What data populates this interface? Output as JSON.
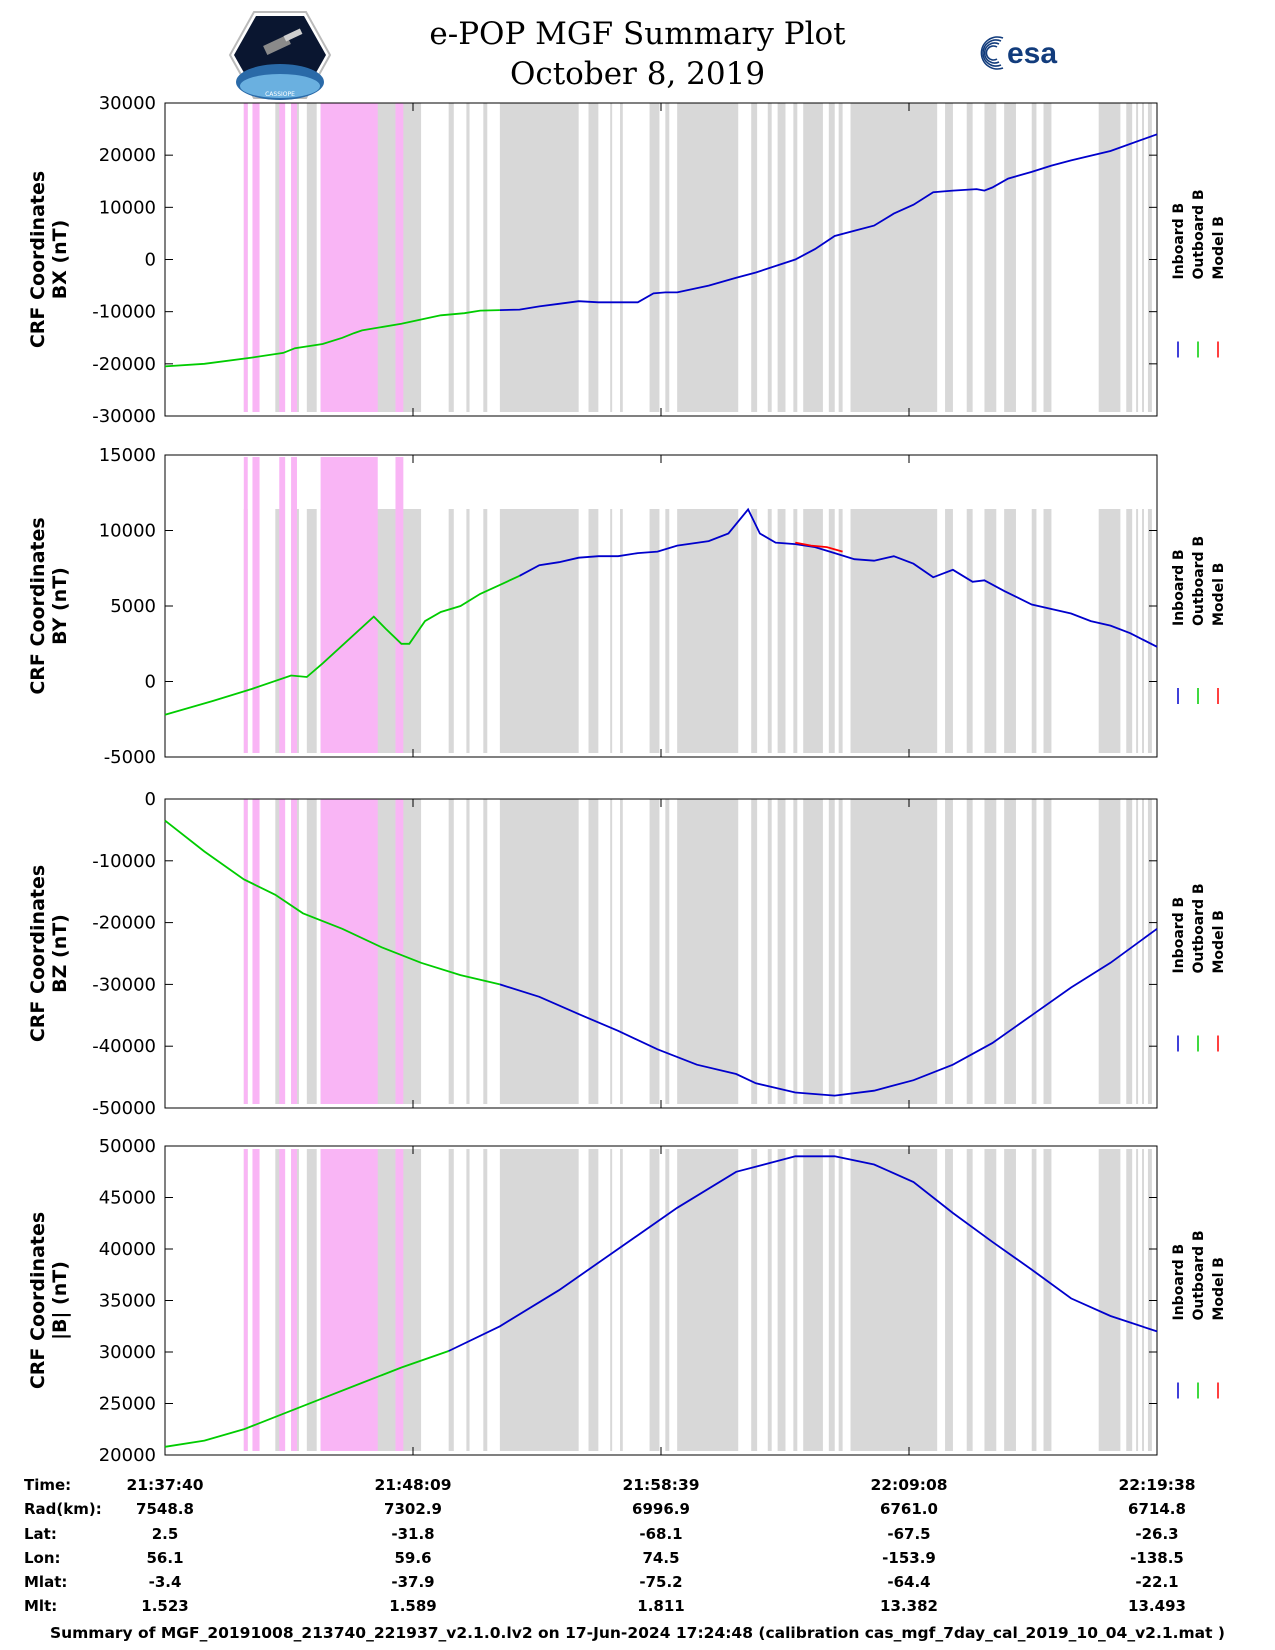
{
  "header": {
    "title_line1": "e-POP MGF Summary Plot",
    "title_line2": "October 8, 2019",
    "logo_left_text": "CASSIOPE",
    "logo_right_text": "esa"
  },
  "colors": {
    "inboard": "#0000cc",
    "outboard": "#00cc00",
    "model": "#ff0000",
    "shade_gray": "#d8d8d8",
    "shade_pink": "#f9b5f5"
  },
  "legend": {
    "inboard": "Inboard B",
    "outboard": "Outboard B",
    "model": "Model B"
  },
  "chart_data": [
    {
      "type": "line",
      "title": "",
      "ylabel": "CRF Coordinates\nBX (nT)",
      "ylim": [
        -30000,
        30000
      ],
      "yticks": [
        -30000,
        -20000,
        -10000,
        0,
        10000,
        20000,
        30000
      ],
      "ytick_labels": [
        "-30000",
        "-20000",
        "-10000",
        "0",
        "10000",
        "20000",
        "30000"
      ],
      "xlim": [
        0,
        2518
      ],
      "series": [
        {
          "name": "Outboard B",
          "color_key": "outboard",
          "x": [
            0,
            100,
            220,
            300,
            330,
            400,
            450,
            480,
            500,
            600,
            700,
            760,
            800,
            850
          ],
          "y": [
            -20500,
            -20000,
            -18800,
            -17900,
            -17000,
            -16200,
            -15000,
            -14100,
            -13600,
            -12300,
            -10700,
            -10300,
            -9800,
            -9700
          ]
        },
        {
          "name": "Inboard B",
          "color_key": "inboard",
          "x": [
            850,
            900,
            950,
            1000,
            1050,
            1100,
            1150,
            1200,
            1240,
            1270,
            1300,
            1380,
            1450,
            1500,
            1600,
            1650,
            1700,
            1750,
            1800,
            1850,
            1900,
            1950,
            2000,
            2060,
            2080,
            2100,
            2140,
            2200,
            2250,
            2300,
            2400,
            2518
          ],
          "y": [
            -9700,
            -9600,
            -9000,
            -8500,
            -8000,
            -8200,
            -8200,
            -8200,
            -6500,
            -6300,
            -6300,
            -5000,
            -3500,
            -2500,
            0,
            2000,
            4500,
            5500,
            6500,
            8800,
            10500,
            12900,
            13200,
            13500,
            13200,
            13800,
            15500,
            16800,
            18000,
            19000,
            20800,
            24000
          ]
        }
      ]
    },
    {
      "type": "line",
      "ylabel": "CRF Coordinates\nBY (nT)",
      "ylim": [
        -5000,
        15000
      ],
      "yticks": [
        -5000,
        0,
        5000,
        10000,
        15000
      ],
      "ytick_labels": [
        "-5000",
        "0",
        "5000",
        "10000",
        "15000"
      ],
      "xlim": [
        0,
        2518
      ],
      "series": [
        {
          "name": "Outboard B",
          "color_key": "outboard",
          "x": [
            0,
            120,
            220,
            320,
            360,
            400,
            530,
            560,
            600,
            620,
            660,
            700,
            750,
            800,
            850,
            900
          ],
          "y": [
            -2200,
            -1300,
            -500,
            400,
            300,
            1200,
            4300,
            3500,
            2500,
            2500,
            4000,
            4600,
            5000,
            5800,
            6400,
            7000
          ]
        },
        {
          "name": "Inboard B",
          "color_key": "inboard",
          "x": [
            900,
            950,
            1000,
            1050,
            1100,
            1150,
            1200,
            1250,
            1300,
            1380,
            1430,
            1480,
            1510,
            1550,
            1600,
            1650,
            1700,
            1750,
            1800,
            1850,
            1900,
            1950,
            2000,
            2050,
            2080,
            2130,
            2200,
            2250,
            2300,
            2350,
            2400,
            2450,
            2518
          ],
          "y": [
            7000,
            7700,
            7900,
            8200,
            8300,
            8300,
            8500,
            8600,
            9000,
            9300,
            9800,
            11400,
            9800,
            9200,
            9100,
            8900,
            8500,
            8100,
            8000,
            8300,
            7800,
            6900,
            7400,
            6600,
            6700,
            6000,
            5100,
            4800,
            4500,
            4000,
            3700,
            3200,
            2300
          ]
        },
        {
          "name": "Model B",
          "color_key": "model",
          "x": [
            1600,
            1640,
            1680,
            1720
          ],
          "y": [
            9200,
            9000,
            8900,
            8600
          ]
        }
      ]
    },
    {
      "type": "line",
      "ylabel": "CRF Coordinates\nBZ (nT)",
      "ylim": [
        -50000,
        0
      ],
      "yticks": [
        -50000,
        -40000,
        -30000,
        -20000,
        -10000,
        0
      ],
      "ytick_labels": [
        "-50000",
        "-40000",
        "-30000",
        "-20000",
        "-10000",
        "0"
      ],
      "xlim": [
        0,
        2518
      ],
      "series": [
        {
          "name": "Outboard B",
          "color_key": "outboard",
          "x": [
            0,
            100,
            200,
            280,
            350,
            450,
            550,
            650,
            750,
            850
          ],
          "y": [
            -3500,
            -8500,
            -13000,
            -15500,
            -18500,
            -21000,
            -24000,
            -26500,
            -28500,
            -30000
          ]
        },
        {
          "name": "Inboard B",
          "color_key": "inboard",
          "x": [
            850,
            950,
            1050,
            1150,
            1250,
            1350,
            1450,
            1500,
            1600,
            1700,
            1800,
            1900,
            2000,
            2100,
            2200,
            2300,
            2400,
            2518
          ],
          "y": [
            -30000,
            -32000,
            -34800,
            -37500,
            -40500,
            -43000,
            -44500,
            -46000,
            -47500,
            -48000,
            -47200,
            -45500,
            -43000,
            -39500,
            -35000,
            -30500,
            -26500,
            -21000
          ]
        }
      ]
    },
    {
      "type": "line",
      "ylabel": "CRF Coordinates\n|B| (nT)",
      "ylim": [
        20000,
        50000
      ],
      "yticks": [
        20000,
        25000,
        30000,
        35000,
        40000,
        45000,
        50000
      ],
      "ytick_labels": [
        "20000",
        "25000",
        "30000",
        "35000",
        "40000",
        "45000",
        "50000"
      ],
      "xlim": [
        0,
        2518
      ],
      "series": [
        {
          "name": "Outboard B",
          "color_key": "outboard",
          "x": [
            0,
            100,
            200,
            300,
            400,
            500,
            600,
            720
          ],
          "y": [
            20800,
            21400,
            22500,
            24000,
            25500,
            27000,
            28500,
            30100
          ]
        },
        {
          "name": "Inboard B",
          "color_key": "inboard",
          "x": [
            720,
            850,
            1000,
            1150,
            1300,
            1450,
            1600,
            1700,
            1800,
            1900,
            2000,
            2100,
            2200,
            2300,
            2400,
            2518
          ],
          "y": [
            30100,
            32500,
            36000,
            40000,
            44000,
            47500,
            49000,
            49000,
            48200,
            46500,
            43500,
            40700,
            38000,
            35200,
            33500,
            32000
          ]
        }
      ]
    }
  ],
  "shading": {
    "gray_spans": [
      [
        200,
        210
      ],
      [
        230,
        235
      ],
      [
        280,
        295
      ],
      [
        320,
        340
      ],
      [
        360,
        385
      ],
      [
        395,
        405
      ],
      [
        430,
        470
      ],
      [
        500,
        595
      ],
      [
        600,
        650
      ],
      [
        720,
        733
      ],
      [
        765,
        773
      ],
      [
        808,
        818
      ],
      [
        850,
        1050
      ],
      [
        1075,
        1100
      ],
      [
        1130,
        1135
      ],
      [
        1155,
        1162
      ],
      [
        1230,
        1255
      ],
      [
        1270,
        1280
      ],
      [
        1300,
        1455
      ],
      [
        1488,
        1503
      ],
      [
        1530,
        1540
      ],
      [
        1555,
        1575
      ],
      [
        1595,
        1605
      ],
      [
        1620,
        1670
      ],
      [
        1685,
        1700
      ],
      [
        1710,
        1720
      ],
      [
        1740,
        1960
      ],
      [
        1980,
        2000
      ],
      [
        2035,
        2050
      ],
      [
        2080,
        2110
      ],
      [
        2130,
        2160
      ],
      [
        2200,
        2212
      ],
      [
        2230,
        2250
      ],
      [
        2370,
        2425
      ],
      [
        2440,
        2455
      ],
      [
        2465,
        2470
      ],
      [
        2480,
        2485
      ],
      [
        2495,
        2505
      ]
    ],
    "pink_spans": [
      [
        200,
        210
      ],
      [
        222,
        240
      ],
      [
        290,
        305
      ],
      [
        320,
        335
      ],
      [
        395,
        540
      ],
      [
        585,
        605
      ]
    ]
  },
  "info_table": {
    "row_labels": [
      "Time:",
      "Rad(km):",
      "Lat:",
      "Lon:",
      "Mlat:",
      "Mlt:"
    ],
    "columns": [
      [
        "21:37:40",
        "7548.8",
        "2.5",
        "56.1",
        "-3.4",
        "1.523"
      ],
      [
        "21:48:09",
        "7302.9",
        "-31.8",
        "59.6",
        "-37.9",
        "1.589"
      ],
      [
        "21:58:39",
        "6996.9",
        "-68.1",
        "74.5",
        "-75.2",
        "1.811"
      ],
      [
        "22:09:08",
        "6761.0",
        "-67.5",
        "-153.9",
        "-64.4",
        "13.382"
      ],
      [
        "22:19:38",
        "6714.8",
        "-26.3",
        "-138.5",
        "-22.1",
        "13.493"
      ]
    ]
  },
  "footer": "Summary of MGF_20191008_213740_221937_v2.1.0.lv2 on 17-Jun-2024 17:24:48 (calibration cas_mgf_7day_cal_2019_10_04_v2.1.mat )"
}
